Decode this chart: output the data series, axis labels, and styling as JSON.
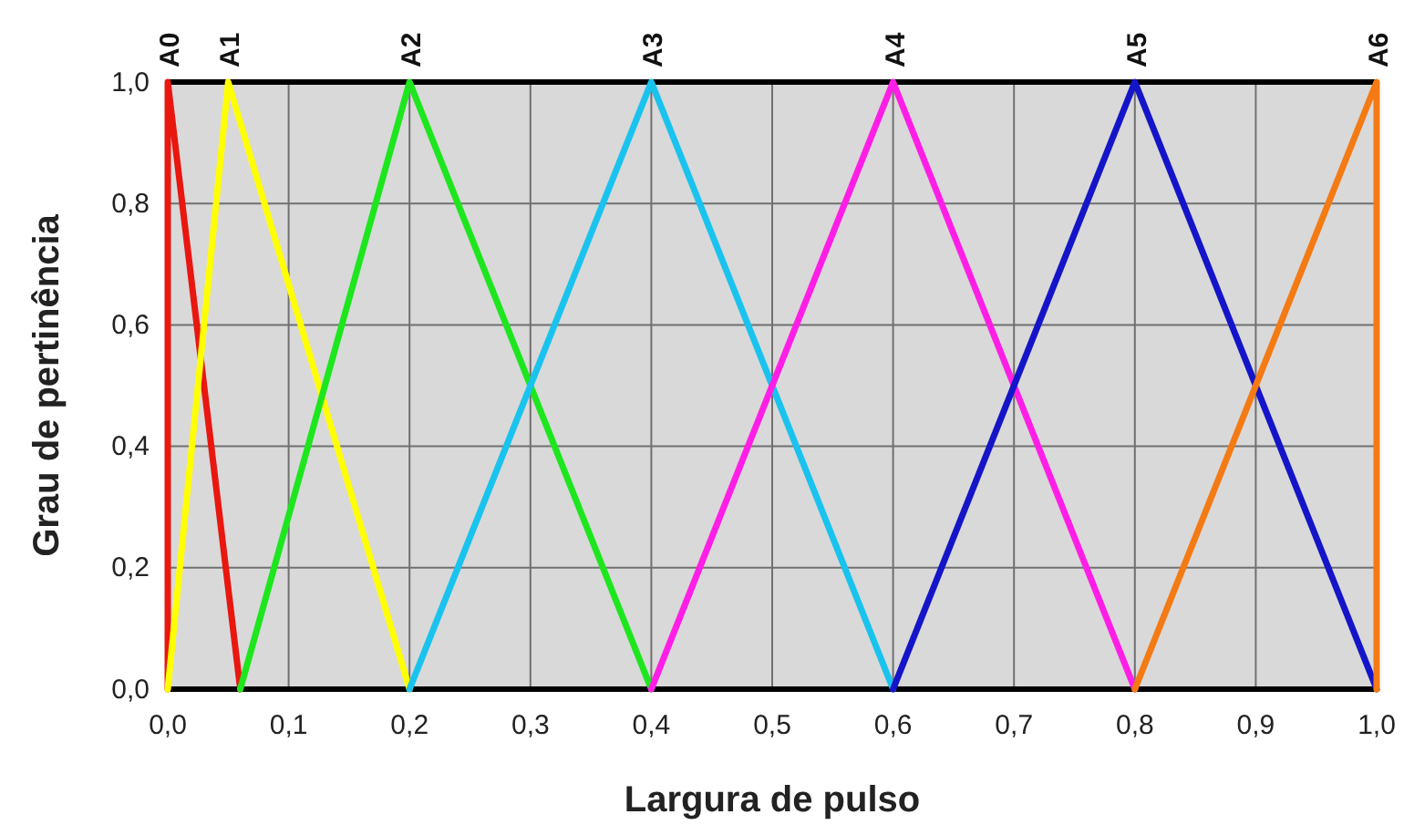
{
  "chart_data": {
    "type": "line",
    "xlabel": "Largura de pulso",
    "ylabel": "Grau de pertinência",
    "xlim": [
      0,
      1
    ],
    "ylim": [
      0,
      1
    ],
    "xticks": [
      {
        "value": 0,
        "label": "0,0"
      },
      {
        "value": 0.1,
        "label": "0,1"
      },
      {
        "value": 0.2,
        "label": "0,2"
      },
      {
        "value": 0.3,
        "label": "0,3"
      },
      {
        "value": 0.4,
        "label": "0,4"
      },
      {
        "value": 0.5,
        "label": "0,5"
      },
      {
        "value": 0.6,
        "label": "0,6"
      },
      {
        "value": 0.7,
        "label": "0,7"
      },
      {
        "value": 0.8,
        "label": "0,8"
      },
      {
        "value": 0.9,
        "label": "0,9"
      },
      {
        "value": 1,
        "label": "1,0"
      }
    ],
    "yticks": [
      {
        "value": 0,
        "label": "0,0"
      },
      {
        "value": 0.2,
        "label": "0,2"
      },
      {
        "value": 0.4,
        "label": "0,4"
      },
      {
        "value": 0.6,
        "label": "0,6"
      },
      {
        "value": 0.8,
        "label": "0,8"
      },
      {
        "value": 1,
        "label": "1,0"
      }
    ],
    "grid": true,
    "marker": "none",
    "line_style": "solid",
    "series": [
      {
        "name": "A0",
        "color": "#e8170f",
        "x": [
          0,
          0,
          0.06
        ],
        "values": [
          0,
          1,
          0
        ]
      },
      {
        "name": "A1",
        "color": "#ffff00",
        "x": [
          0,
          0.05,
          0.2
        ],
        "values": [
          0,
          1,
          0
        ]
      },
      {
        "name": "A2",
        "color": "#1ee61e",
        "x": [
          0.06,
          0.2,
          0.4
        ],
        "values": [
          0,
          1,
          0
        ]
      },
      {
        "name": "A3",
        "color": "#19c3ee",
        "x": [
          0.2,
          0.4,
          0.6
        ],
        "values": [
          0,
          1,
          0
        ]
      },
      {
        "name": "A4",
        "color": "#ff1ee6",
        "x": [
          0.4,
          0.6,
          0.8
        ],
        "values": [
          0,
          1,
          0
        ]
      },
      {
        "name": "A5",
        "color": "#1414c8",
        "x": [
          0.6,
          0.8,
          1
        ],
        "values": [
          0,
          1,
          0
        ]
      },
      {
        "name": "A6",
        "color": "#f47a14",
        "x": [
          0.8,
          1,
          1
        ],
        "values": [
          0,
          1,
          0
        ]
      }
    ]
  }
}
